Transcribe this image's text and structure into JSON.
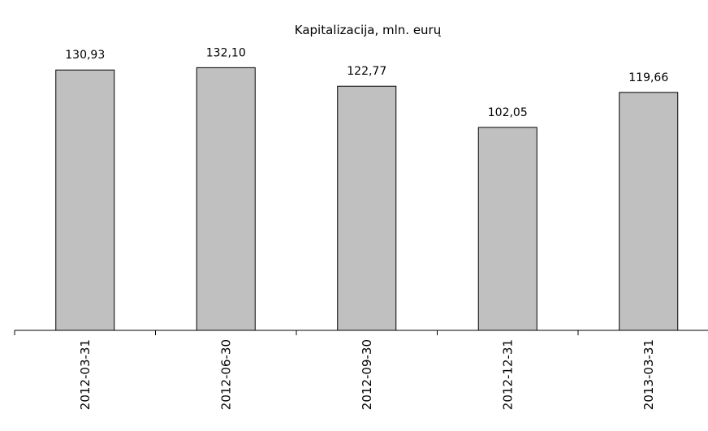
{
  "chart_data": {
    "type": "bar",
    "title": "Kapitalizacija, mln. eurų",
    "categories": [
      "2012-03-31",
      "2012-06-30",
      "2012-09-30",
      "2012-12-31",
      "2013-03-31"
    ],
    "values": [
      130.93,
      132.1,
      122.77,
      102.05,
      119.66
    ],
    "value_labels": [
      "130,93",
      "132,10",
      "122,77",
      "102,05",
      "119,66"
    ],
    "color": "#c0c0c0",
    "ylim": [
      0,
      140
    ]
  }
}
